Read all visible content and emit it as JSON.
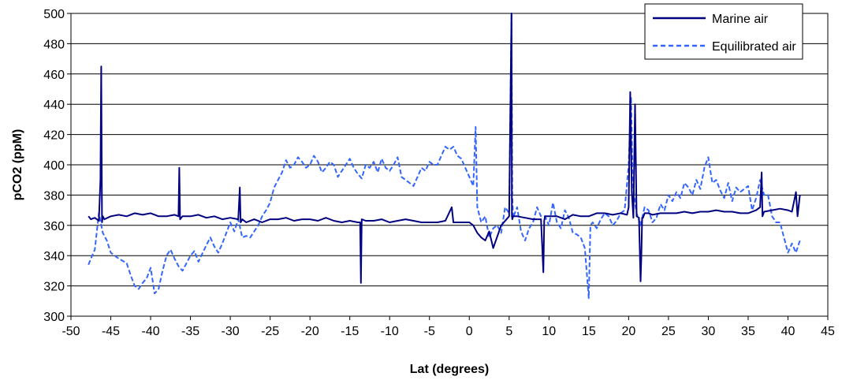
{
  "chart_data": {
    "type": "line",
    "xlabel": "Lat (degrees)",
    "ylabel": "pCO2 (ppM)",
    "xlim": [
      -50,
      45
    ],
    "ylim": [
      300,
      500
    ],
    "xticks": [
      "-50",
      "-45",
      "-40",
      "-35",
      "-30",
      "-25",
      "-20",
      "-15",
      "-10",
      "-5",
      "0",
      "5",
      "10",
      "15",
      "20",
      "25",
      "30",
      "35",
      "40",
      "45"
    ],
    "yticks": [
      "300",
      "320",
      "340",
      "360",
      "380",
      "400",
      "420",
      "440",
      "460",
      "480",
      "500"
    ],
    "grid": "horizontal",
    "legend_position": "top-right",
    "series": [
      {
        "name": "Marine air",
        "style": "solid",
        "color": "#000080",
        "x": [
          -47.8,
          -47.5,
          -47.0,
          -46.5,
          -46.3,
          -46.2,
          -46.1,
          -46.0,
          -45.8,
          -45.0,
          -44.0,
          -43.0,
          -42.0,
          -41.0,
          -40.0,
          -39.0,
          -38.0,
          -37.0,
          -36.5,
          -36.4,
          -36.3,
          -36.0,
          -35.0,
          -34.0,
          -33.0,
          -32.0,
          -31.0,
          -30.0,
          -29.0,
          -28.8,
          -28.7,
          -28.5,
          -28.0,
          -27.0,
          -26.0,
          -25.0,
          -24.0,
          -23.0,
          -22.0,
          -21.0,
          -20.0,
          -19.0,
          -18.0,
          -17.0,
          -16.0,
          -15.0,
          -14.0,
          -13.7,
          -13.6,
          -13.5,
          -13.0,
          -12.0,
          -11.0,
          -10.0,
          -9.0,
          -8.0,
          -7.0,
          -6.0,
          -5.0,
          -4.0,
          -3.0,
          -2.2,
          -2.0,
          -1.0,
          0.0,
          0.5,
          1.0,
          1.5,
          2.0,
          2.5,
          3.0,
          4.0,
          5.0,
          5.3,
          5.35,
          5.4,
          5.5,
          6.0,
          7.0,
          8.0,
          9.0,
          9.3,
          9.4,
          9.5,
          10.0,
          11.0,
          12.0,
          13.0,
          14.0,
          15.0,
          16.0,
          17.0,
          18.0,
          19.0,
          19.8,
          20.0,
          20.2,
          20.4,
          20.6,
          20.8,
          21.0,
          21.3,
          21.5,
          21.6,
          21.7,
          21.8,
          22.0,
          22.5,
          23.0,
          24.0,
          25.0,
          26.0,
          27.0,
          28.0,
          29.0,
          30.0,
          31.0,
          32.0,
          33.0,
          34.0,
          35.0,
          36.0,
          36.5,
          36.7,
          36.8,
          37.0,
          38.0,
          39.0,
          40.0,
          40.5,
          41.0,
          41.2,
          41.5
        ],
        "values": [
          366,
          364,
          365,
          363,
          390,
          465,
          362,
          366,
          364,
          366,
          367,
          366,
          368,
          367,
          368,
          366,
          366,
          367,
          366,
          398,
          364,
          366,
          366,
          367,
          365,
          366,
          364,
          365,
          364,
          385,
          362,
          364,
          362,
          364,
          362,
          364,
          364,
          365,
          363,
          364,
          364,
          363,
          365,
          363,
          362,
          363,
          362,
          362,
          322,
          364,
          363,
          363,
          364,
          362,
          363,
          364,
          363,
          362,
          362,
          362,
          363,
          372,
          362,
          362,
          362,
          360,
          355,
          352,
          350,
          356,
          345,
          360,
          366,
          500,
          366,
          364,
          366,
          366,
          365,
          364,
          364,
          329,
          363,
          366,
          366,
          366,
          364,
          367,
          366,
          366,
          368,
          368,
          367,
          368,
          367,
          372,
          448,
          382,
          365,
          440,
          366,
          365,
          323,
          340,
          365,
          365,
          368,
          368,
          367,
          368,
          368,
          368,
          369,
          368,
          369,
          369,
          370,
          369,
          369,
          368,
          368,
          370,
          372,
          395,
          366,
          369,
          370,
          371,
          370,
          369,
          382,
          366,
          380
        ]
      },
      {
        "name": "Equilibrated air",
        "style": "dashed",
        "color": "#3366ff",
        "x": [
          -47.8,
          -47.5,
          -47.0,
          -46.5,
          -46.0,
          -45.5,
          -45.0,
          -44.0,
          -43.0,
          -42.5,
          -42.0,
          -41.5,
          -41.0,
          -40.5,
          -40.0,
          -39.5,
          -39.0,
          -38.5,
          -38.0,
          -37.5,
          -37.0,
          -36.5,
          -36.0,
          -35.5,
          -35.0,
          -34.5,
          -34.0,
          -33.0,
          -32.5,
          -32.0,
          -31.5,
          -31.0,
          -30.5,
          -30.0,
          -29.5,
          -29.0,
          -28.5,
          -28.0,
          -27.5,
          -27.0,
          -26.5,
          -26.0,
          -25.5,
          -25.0,
          -24.5,
          -24.0,
          -23.5,
          -23.0,
          -22.5,
          -22.0,
          -21.5,
          -21.0,
          -20.5,
          -20.0,
          -19.5,
          -19.0,
          -18.5,
          -18.0,
          -17.5,
          -17.0,
          -16.5,
          -16.0,
          -15.5,
          -15.0,
          -14.5,
          -14.0,
          -13.5,
          -13.0,
          -12.5,
          -12.0,
          -11.5,
          -11.0,
          -10.5,
          -10.0,
          -9.5,
          -9.0,
          -8.5,
          -8.0,
          -7.5,
          -7.0,
          -6.5,
          -6.0,
          -5.5,
          -5.0,
          -4.5,
          -4.0,
          -3.5,
          -3.0,
          -2.5,
          -2.0,
          -1.5,
          -1.0,
          -0.5,
          0.0,
          0.5,
          0.8,
          1.0,
          1.5,
          2.0,
          2.5,
          3.0,
          3.5,
          4.0,
          4.5,
          5.0,
          5.3,
          5.4,
          5.5,
          6.0,
          6.5,
          7.0,
          7.5,
          8.0,
          8.5,
          9.0,
          9.5,
          10.0,
          10.5,
          11.0,
          11.5,
          12.0,
          12.5,
          13.0,
          13.5,
          14.0,
          14.5,
          15.0,
          15.2,
          15.5,
          16.0,
          16.5,
          17.0,
          17.5,
          18.0,
          18.5,
          19.0,
          19.5,
          20.0,
          20.3,
          20.5,
          20.8,
          21.0,
          21.5,
          22.0,
          22.5,
          23.0,
          23.5,
          24.0,
          24.5,
          25.0,
          25.5,
          26.0,
          26.5,
          27.0,
          27.5,
          28.0,
          28.5,
          29.0,
          29.5,
          30.0,
          30.5,
          31.0,
          31.5,
          32.0,
          32.5,
          33.0,
          33.5,
          34.0,
          34.5,
          35.0,
          35.5,
          36.0,
          36.5,
          37.0,
          37.5,
          38.0,
          38.5,
          39.0,
          39.5,
          40.0,
          40.5,
          41.0,
          41.5
        ],
        "values": [
          334,
          338,
          344,
          368,
          355,
          350,
          342,
          338,
          335,
          327,
          320,
          318,
          322,
          325,
          332,
          315,
          318,
          330,
          340,
          344,
          338,
          333,
          330,
          335,
          340,
          343,
          336,
          347,
          352,
          346,
          342,
          348,
          355,
          362,
          356,
          364,
          352,
          353,
          352,
          356,
          360,
          366,
          370,
          375,
          385,
          390,
          395,
          403,
          398,
          400,
          405,
          402,
          398,
          400,
          406,
          402,
          395,
          398,
          402,
          400,
          392,
          396,
          400,
          404,
          398,
          394,
          391,
          400,
          398,
          402,
          395,
          404,
          398,
          396,
          400,
          405,
          392,
          390,
          388,
          386,
          392,
          398,
          396,
          402,
          400,
          400,
          406,
          412,
          410,
          412,
          406,
          404,
          398,
          392,
          386,
          425,
          372,
          362,
          366,
          352,
          358,
          360,
          355,
          372,
          368,
          500,
          380,
          365,
          372,
          356,
          350,
          358,
          362,
          372,
          366,
          366,
          360,
          375,
          362,
          358,
          370,
          365,
          355,
          354,
          352,
          345,
          312,
          360,
          362,
          358,
          364,
          368,
          366,
          360,
          363,
          368,
          370,
          400,
          445,
          390,
          375,
          368,
          360,
          372,
          370,
          362,
          365,
          374,
          370,
          380,
          376,
          382,
          378,
          388,
          385,
          380,
          390,
          384,
          398,
          405,
          388,
          390,
          383,
          378,
          388,
          376,
          385,
          382,
          384,
          386,
          370,
          378,
          390,
          380,
          380,
          366,
          362,
          362,
          352,
          342,
          348,
          342,
          350
        ]
      }
    ]
  }
}
